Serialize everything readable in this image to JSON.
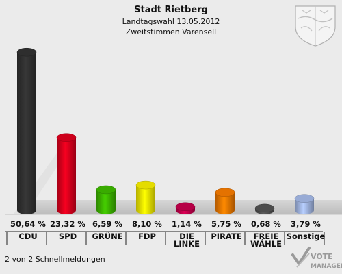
{
  "chart_data": {
    "type": "bar",
    "title": "Stadt Rietberg",
    "subtitle_1": "Landtagswahl 13.05.2012",
    "subtitle_2": "Zweitstimmen Varensell",
    "categories": [
      {
        "line1": "CDU",
        "line2": ""
      },
      {
        "line1": "SPD",
        "line2": ""
      },
      {
        "line1": "GRÜNE",
        "line2": ""
      },
      {
        "line1": "FDP",
        "line2": ""
      },
      {
        "line1": "DIE",
        "line2": "LINKE"
      },
      {
        "line1": "PIRATE",
        "line2": ""
      },
      {
        "line1": "FREIE",
        "line2": "WÄHLE"
      },
      {
        "line1": "Sonstige",
        "line2": ""
      }
    ],
    "values": [
      50.64,
      23.32,
      6.59,
      8.1,
      1.14,
      5.75,
      0.68,
      3.79
    ],
    "value_labels": [
      "50,64 %",
      "23,32 %",
      "6,59 %",
      "8,10 %",
      "1,14 %",
      "5,75 %",
      "0,68 %",
      "3,79 %"
    ],
    "colors": [
      "#303030",
      "#d8001c",
      "#3cb400",
      "#f0e800",
      "#c0004a",
      "#f07800",
      "#505050",
      "#a0b4e0"
    ],
    "ylim": [
      0,
      52
    ]
  },
  "footer": {
    "status": "2 von 2 Schnellmeldungen",
    "logo_line1": "VOTE",
    "logo_line2": "MANAGER"
  },
  "crest_icon": "coat-of-arms-icon"
}
